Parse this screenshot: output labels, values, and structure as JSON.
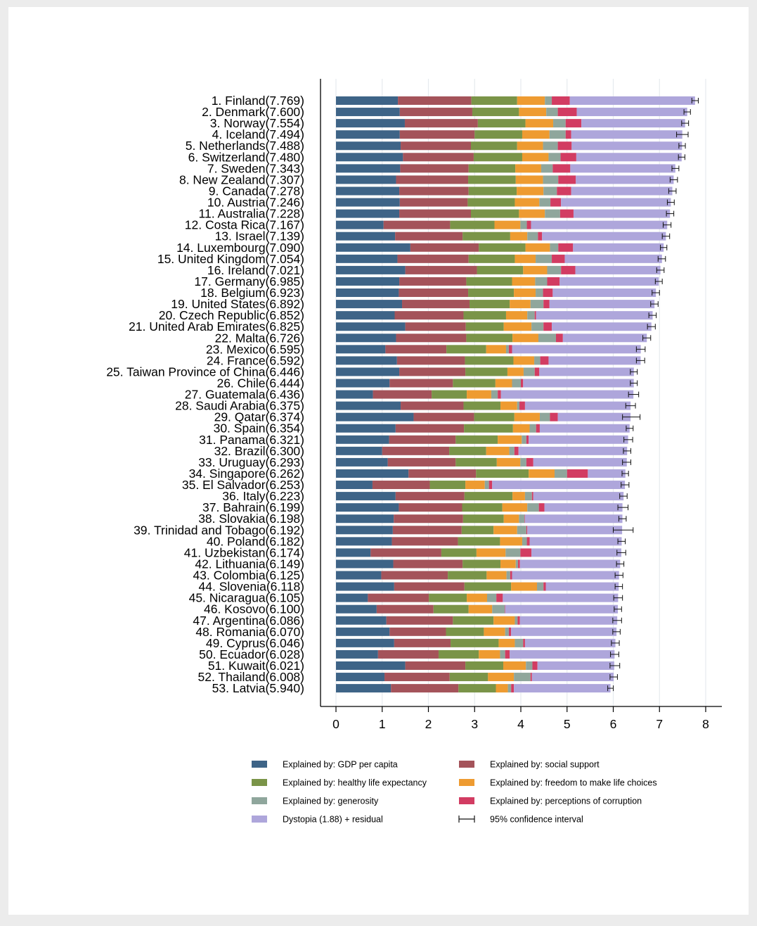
{
  "chart_data": {
    "type": "bar",
    "orientation": "horizontal",
    "stacked": true,
    "title": "",
    "xlabel": "",
    "ylabel": "",
    "xlim": [
      0,
      8.2
    ],
    "xticks": [
      "0",
      "1",
      "2",
      "3",
      "4",
      "5",
      "6",
      "7",
      "8"
    ],
    "grid": true,
    "legend_position": "bottom",
    "colors": {
      "gdp": "#3e6487",
      "social": "#a4535a",
      "health": "#7a9448",
      "freedom": "#ee9b31",
      "generosity": "#8fa69c",
      "corruption": "#d23c62",
      "dystopia": "#aea6db",
      "ci": "#000000"
    },
    "legend": [
      {
        "key": "gdp",
        "label": "Explained by: GDP per capita"
      },
      {
        "key": "social",
        "label": "Explained by: social support"
      },
      {
        "key": "health",
        "label": "Explained by: healthy life expectancy"
      },
      {
        "key": "freedom",
        "label": "Explained by: freedom to make life choices"
      },
      {
        "key": "generosity",
        "label": "Explained by: generosity"
      },
      {
        "key": "corruption",
        "label": "Explained by: perceptions of corruption"
      },
      {
        "key": "dystopia",
        "label": "Dystopia (1.88) + residual"
      },
      {
        "key": "ci",
        "label": "95% confidence interval"
      }
    ],
    "categories": [
      "1. Finland(7.769)",
      "2. Denmark(7.600)",
      "3. Norway(7.554)",
      "4. Iceland(7.494)",
      "5. Netherlands(7.488)",
      "6. Switzerland(7.480)",
      "7. Sweden(7.343)",
      "8. New Zealand(7.307)",
      "9. Canada(7.278)",
      "10. Austria(7.246)",
      "11. Australia(7.228)",
      "12. Costa Rica(7.167)",
      "13. Israel(7.139)",
      "14. Luxembourg(7.090)",
      "15. United Kingdom(7.054)",
      "16. Ireland(7.021)",
      "17. Germany(6.985)",
      "18. Belgium(6.923)",
      "19. United States(6.892)",
      "20. Czech Republic(6.852)",
      "21. United Arab Emirates(6.825)",
      "22. Malta(6.726)",
      "23. Mexico(6.595)",
      "24. France(6.592)",
      "25. Taiwan Province of China(6.446)",
      "26. Chile(6.444)",
      "27. Guatemala(6.436)",
      "28. Saudi Arabia(6.375)",
      "29. Qatar(6.374)",
      "30. Spain(6.354)",
      "31. Panama(6.321)",
      "32. Brazil(6.300)",
      "33. Uruguay(6.293)",
      "34. Singapore(6.262)",
      "35. El Salvador(6.253)",
      "36. Italy(6.223)",
      "37. Bahrain(6.199)",
      "38. Slovakia(6.198)",
      "39. Trinidad and Tobago(6.192)",
      "40. Poland(6.182)",
      "41. Uzbekistan(6.174)",
      "42. Lithuania(6.149)",
      "43. Colombia(6.125)",
      "44. Slovenia(6.118)",
      "45. Nicaragua(6.105)",
      "46. Kosovo(6.100)",
      "47. Argentina(6.086)",
      "48. Romania(6.070)",
      "49. Cyprus(6.046)",
      "50. Ecuador(6.028)",
      "51. Kuwait(6.021)",
      "52. Thailand(6.008)",
      "53. Latvia(5.940)"
    ],
    "scores": [
      7.769,
      7.6,
      7.554,
      7.494,
      7.488,
      7.48,
      7.343,
      7.307,
      7.278,
      7.246,
      7.228,
      7.167,
      7.139,
      7.09,
      7.054,
      7.021,
      6.985,
      6.923,
      6.892,
      6.852,
      6.825,
      6.726,
      6.595,
      6.592,
      6.446,
      6.444,
      6.436,
      6.375,
      6.374,
      6.354,
      6.321,
      6.3,
      6.293,
      6.262,
      6.253,
      6.223,
      6.199,
      6.198,
      6.192,
      6.182,
      6.174,
      6.149,
      6.125,
      6.118,
      6.105,
      6.1,
      6.086,
      6.07,
      6.046,
      6.028,
      6.021,
      6.008,
      5.94
    ],
    "series": [
      {
        "key": "gdp",
        "values": [
          1.34,
          1.38,
          1.49,
          1.38,
          1.4,
          1.45,
          1.39,
          1.3,
          1.37,
          1.38,
          1.37,
          1.03,
          1.28,
          1.61,
          1.33,
          1.5,
          1.37,
          1.36,
          1.43,
          1.27,
          1.5,
          1.3,
          1.07,
          1.32,
          1.37,
          1.16,
          0.8,
          1.4,
          1.68,
          1.29,
          1.15,
          1.0,
          1.12,
          1.57,
          0.79,
          1.29,
          1.36,
          1.25,
          1.23,
          1.21,
          0.75,
          1.24,
          0.98,
          1.26,
          0.69,
          0.88,
          1.09,
          1.16,
          1.26,
          0.91,
          1.5,
          1.05,
          1.19
        ]
      },
      {
        "key": "social",
        "values": [
          1.59,
          1.57,
          1.58,
          1.62,
          1.52,
          1.53,
          1.48,
          1.56,
          1.5,
          1.47,
          1.55,
          1.44,
          1.46,
          1.48,
          1.54,
          1.55,
          1.45,
          1.5,
          1.46,
          1.49,
          1.31,
          1.52,
          1.32,
          1.47,
          1.43,
          1.37,
          1.27,
          1.36,
          1.31,
          1.48,
          1.44,
          1.45,
          1.47,
          1.46,
          1.24,
          1.49,
          1.37,
          1.5,
          1.49,
          1.43,
          1.53,
          1.5,
          1.44,
          1.52,
          1.32,
          1.23,
          1.44,
          1.22,
          1.22,
          1.31,
          1.3,
          1.41,
          1.46
        ]
      },
      {
        "key": "health",
        "values": [
          0.99,
          1.01,
          1.03,
          1.03,
          1.0,
          1.05,
          1.01,
          1.03,
          1.04,
          1.02,
          1.04,
          0.96,
          1.03,
          1.01,
          1.0,
          1.0,
          0.99,
          0.99,
          0.87,
          0.92,
          0.82,
          1.0,
          0.86,
          1.05,
          0.91,
          0.92,
          0.76,
          0.8,
          0.87,
          1.06,
          0.91,
          0.8,
          0.89,
          1.14,
          0.77,
          1.04,
          0.87,
          0.88,
          0.69,
          0.91,
          0.76,
          0.82,
          0.84,
          1.01,
          0.82,
          0.76,
          0.88,
          0.82,
          1.04,
          0.87,
          0.82,
          0.83,
          0.81
        ]
      },
      {
        "key": "freedom",
        "values": [
          0.6,
          0.59,
          0.6,
          0.59,
          0.56,
          0.57,
          0.56,
          0.59,
          0.58,
          0.53,
          0.56,
          0.56,
          0.37,
          0.53,
          0.45,
          0.52,
          0.5,
          0.47,
          0.45,
          0.46,
          0.6,
          0.56,
          0.43,
          0.45,
          0.35,
          0.36,
          0.53,
          0.36,
          0.55,
          0.36,
          0.52,
          0.5,
          0.51,
          0.56,
          0.42,
          0.27,
          0.54,
          0.33,
          0.51,
          0.48,
          0.63,
          0.33,
          0.43,
          0.56,
          0.44,
          0.51,
          0.46,
          0.46,
          0.35,
          0.46,
          0.49,
          0.56,
          0.26
        ]
      },
      {
        "key": "generosity",
        "values": [
          0.15,
          0.25,
          0.27,
          0.35,
          0.32,
          0.26,
          0.25,
          0.33,
          0.29,
          0.24,
          0.33,
          0.14,
          0.23,
          0.18,
          0.35,
          0.3,
          0.26,
          0.16,
          0.28,
          0.16,
          0.26,
          0.38,
          0.06,
          0.13,
          0.24,
          0.19,
          0.14,
          0.05,
          0.22,
          0.14,
          0.1,
          0.11,
          0.13,
          0.27,
          0.09,
          0.15,
          0.25,
          0.12,
          0.2,
          0.1,
          0.32,
          0.05,
          0.08,
          0.14,
          0.2,
          0.27,
          0.06,
          0.08,
          0.18,
          0.11,
          0.14,
          0.36,
          0.07
        ]
      },
      {
        "key": "corruption",
        "values": [
          0.39,
          0.41,
          0.34,
          0.12,
          0.3,
          0.34,
          0.38,
          0.38,
          0.31,
          0.23,
          0.29,
          0.09,
          0.09,
          0.32,
          0.28,
          0.31,
          0.27,
          0.21,
          0.13,
          0.03,
          0.18,
          0.15,
          0.07,
          0.18,
          0.1,
          0.05,
          0.07,
          0.12,
          0.17,
          0.08,
          0.05,
          0.09,
          0.15,
          0.45,
          0.07,
          0.03,
          0.12,
          0.01,
          0.02,
          0.06,
          0.24,
          0.04,
          0.04,
          0.05,
          0.14,
          0.01,
          0.05,
          0.05,
          0.04,
          0.1,
          0.11,
          0.03,
          0.06
        ]
      }
    ],
    "ci_low": [
      7.7,
      7.53,
      7.48,
      7.37,
      7.42,
      7.41,
      7.27,
      7.23,
      7.2,
      7.17,
      7.15,
      7.08,
      7.06,
      7.02,
      6.97,
      6.94,
      6.91,
      6.84,
      6.81,
      6.77,
      6.74,
      6.64,
      6.5,
      6.5,
      6.37,
      6.37,
      6.33,
      6.27,
      6.2,
      6.28,
      6.23,
      6.22,
      6.2,
      6.19,
      6.17,
      6.14,
      6.1,
      6.12,
      6.0,
      6.1,
      6.08,
      6.07,
      6.04,
      6.04,
      6.01,
      6.02,
      5.99,
      5.99,
      5.96,
      5.94,
      5.93,
      5.93,
      5.88
    ],
    "ci_high": [
      7.84,
      7.67,
      7.63,
      7.62,
      7.56,
      7.55,
      7.42,
      7.39,
      7.36,
      7.32,
      7.31,
      7.25,
      7.22,
      7.16,
      7.13,
      7.1,
      7.06,
      7.0,
      6.97,
      6.93,
      6.91,
      6.81,
      6.69,
      6.68,
      6.52,
      6.52,
      6.55,
      6.48,
      6.58,
      6.43,
      6.42,
      6.38,
      6.38,
      6.33,
      6.34,
      6.3,
      6.32,
      6.28,
      6.43,
      6.26,
      6.27,
      6.23,
      6.21,
      6.2,
      6.2,
      6.18,
      6.18,
      6.15,
      6.13,
      6.12,
      6.14,
      6.09,
      6.0
    ]
  }
}
